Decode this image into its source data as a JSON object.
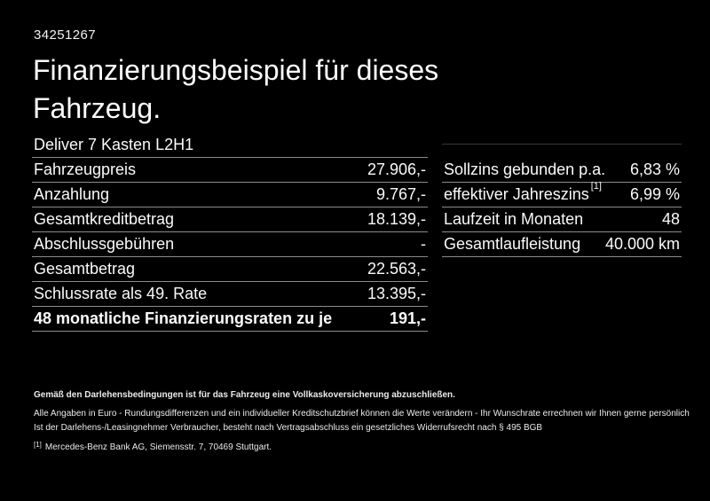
{
  "page": {
    "background_color": "#000000",
    "text_color": "#ffffff",
    "divider_color": "#8c8c8c"
  },
  "header": {
    "id_number": "34251267",
    "title": "Finanzierungsbeispiel für dieses Fahrzeug.",
    "vehicle_name": "Deliver 7 Kasten L2H1"
  },
  "finance_table": {
    "rows": [
      {
        "label": "Fahrzeugpreis",
        "value": "27.906,-"
      },
      {
        "label": "Anzahlung",
        "value": "9.767,-"
      },
      {
        "label": "Gesamtkreditbetrag",
        "value": "18.139,-"
      },
      {
        "label": "Abschlussgebühren",
        "value": "-"
      },
      {
        "label": "Gesamtbetrag",
        "value": "22.563,-"
      },
      {
        "label": "Schlussrate als 49. Rate",
        "value": "13.395,-"
      },
      {
        "label": "48 monatliche Finanzierungsraten zu je",
        "value": "191,-"
      }
    ]
  },
  "conditions_table": {
    "rows": [
      {
        "label": "Sollzins gebunden p.a.",
        "value": "6,83 %"
      },
      {
        "label": "effektiver Jahreszins",
        "sup": "[1]",
        "value": "6,99 %"
      },
      {
        "label": "Laufzeit in Monaten",
        "value": "48"
      },
      {
        "label": "Gesamtlaufleistung",
        "value": "40.000 km"
      }
    ]
  },
  "footer": {
    "line_bold": "Gemäß den Darlehensbedingungen ist für das Fahrzeug eine Vollkaskoversicherung abzuschließen.",
    "line_2": "Alle Angaben in Euro - Rundungsdifferenzen und ein individueller Kreditschutzbrief können die Werte verändern - Ihr Wunschrate errechnen wir Ihnen gerne persönlich",
    "line_3": "Ist der Darlehens-/Leasingnehmer Verbraucher, besteht nach Vertragsabschluss ein gesetzliches Widerrufsrecht nach § 495 BGB",
    "footnote_marker": "[1]",
    "footnote_text": "Mercedes-Benz Bank AG, Siemensstr. 7, 70469 Stuttgart."
  }
}
